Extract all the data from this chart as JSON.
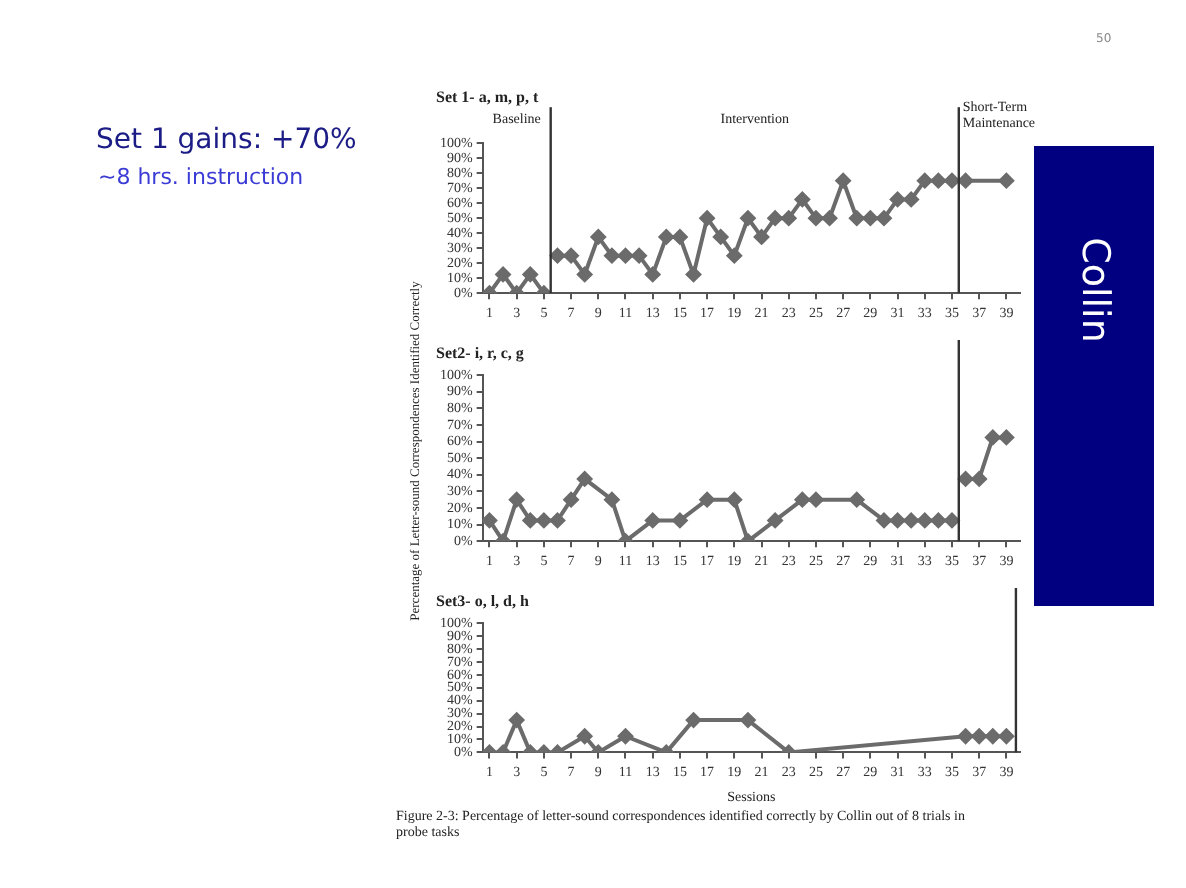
{
  "chart_data": [
    {
      "type": "other",
      "title": "Set 1 gains: +70%",
      "subtitle": "~8 hrs. instruction",
      "annotations": [
        "Collin",
        "50"
      ]
    },
    {
      "type": "line",
      "title": "Set 1- a, m, p, t",
      "marker": "diamond",
      "grid": false,
      "legend": false,
      "xlim": [
        0.5,
        40
      ],
      "ylim": [
        0,
        100
      ],
      "xticks": [
        1,
        3,
        5,
        7,
        9,
        11,
        13,
        15,
        17,
        19,
        21,
        23,
        25,
        27,
        29,
        31,
        33,
        35,
        37,
        39
      ],
      "yticks": [
        {
          "value": 0,
          "label": "0%"
        },
        {
          "value": 10,
          "label": "10%"
        },
        {
          "value": 20,
          "label": "20%"
        },
        {
          "value": 30,
          "label": "30%"
        },
        {
          "value": 40,
          "label": "40%"
        },
        {
          "value": 50,
          "label": "50%"
        },
        {
          "value": 60,
          "label": "60%"
        },
        {
          "value": 70,
          "label": "70%"
        },
        {
          "value": 80,
          "label": "80%"
        },
        {
          "value": 90,
          "label": "90%"
        },
        {
          "value": 100,
          "label": "100%"
        }
      ],
      "series": [
        {
          "color": "#6b6b6b",
          "x": [
            1,
            2,
            3,
            4,
            5
          ],
          "values": [
            0,
            12.5,
            0,
            12.5,
            0
          ]
        },
        {
          "color": "#6b6b6b",
          "x": [
            6,
            7,
            8,
            9,
            10,
            11,
            12,
            13,
            14,
            15,
            16,
            17,
            18,
            19,
            20,
            21,
            22,
            23,
            24,
            25,
            26,
            27,
            28,
            29,
            30,
            31,
            32,
            33,
            34,
            35,
            36,
            39
          ],
          "values": [
            25,
            25,
            12.5,
            37.5,
            25,
            25,
            25,
            12.5,
            37.5,
            37.5,
            12.5,
            50,
            37.5,
            25,
            50,
            37.5,
            50,
            50,
            62.5,
            50,
            50,
            75,
            50,
            50,
            50,
            62.5,
            62.5,
            75,
            75,
            75,
            75,
            75
          ]
        }
      ],
      "ref_lines": [
        {
          "axis": "x",
          "value": 5.5
        },
        {
          "axis": "x",
          "value": 35.5
        }
      ],
      "annotations": [
        "Baseline",
        "Intervention",
        "Short-Term Maintenance"
      ]
    },
    {
      "type": "line",
      "title": "Set2- i, r, c, g",
      "ylabel": "Percentage of Letter-sound Correspondences Identified Correctly",
      "marker": "diamond",
      "grid": false,
      "legend": false,
      "xlim": [
        0.5,
        40
      ],
      "ylim": [
        0,
        100
      ],
      "xticks": [
        1,
        3,
        5,
        7,
        9,
        11,
        13,
        15,
        17,
        19,
        21,
        23,
        25,
        27,
        29,
        31,
        33,
        35,
        37,
        39
      ],
      "yticks": [
        {
          "value": 0,
          "label": "0%"
        },
        {
          "value": 10,
          "label": "10%"
        },
        {
          "value": 20,
          "label": "20%"
        },
        {
          "value": 30,
          "label": "30%"
        },
        {
          "value": 40,
          "label": "40%"
        },
        {
          "value": 50,
          "label": "50%"
        },
        {
          "value": 60,
          "label": "60%"
        },
        {
          "value": 70,
          "label": "70%"
        },
        {
          "value": 80,
          "label": "80%"
        },
        {
          "value": 90,
          "label": "90%"
        },
        {
          "value": 100,
          "label": "100%"
        }
      ],
      "series": [
        {
          "color": "#6b6b6b",
          "x": [
            1,
            2,
            3,
            4,
            5,
            6,
            7,
            8,
            10,
            11,
            13,
            15,
            17,
            19,
            20,
            22,
            24,
            25,
            28,
            30,
            31,
            32,
            33,
            34,
            35
          ],
          "values": [
            12.5,
            0,
            25,
            12.5,
            12.5,
            12.5,
            25,
            37.5,
            25,
            0,
            12.5,
            12.5,
            25,
            25,
            0,
            12.5,
            25,
            25,
            25,
            12.5,
            12.5,
            12.5,
            12.5,
            12.5,
            12.5
          ]
        },
        {
          "color": "#6b6b6b",
          "x": [
            36,
            37,
            38,
            39
          ],
          "values": [
            37.5,
            37.5,
            62.5,
            62.5
          ]
        }
      ],
      "ref_lines": [
        {
          "axis": "x",
          "value": 35.5
        }
      ]
    },
    {
      "type": "line",
      "title": "Set3- o, l, d, h",
      "xlabel": "Sessions",
      "marker": "diamond",
      "grid": false,
      "legend": false,
      "xlim": [
        0.5,
        40
      ],
      "ylim": [
        0,
        100
      ],
      "xticks": [
        1,
        3,
        5,
        7,
        9,
        11,
        13,
        15,
        17,
        19,
        21,
        23,
        25,
        27,
        29,
        31,
        33,
        35,
        37,
        39
      ],
      "yticks": [
        {
          "value": 0,
          "label": "0%"
        },
        {
          "value": 10,
          "label": "10%"
        },
        {
          "value": 20,
          "label": "20%"
        },
        {
          "value": 30,
          "label": "30%"
        },
        {
          "value": 40,
          "label": "40%"
        },
        {
          "value": 50,
          "label": "50%"
        },
        {
          "value": 60,
          "label": "60%"
        },
        {
          "value": 70,
          "label": "70%"
        },
        {
          "value": 80,
          "label": "80%"
        },
        {
          "value": 90,
          "label": "90%"
        },
        {
          "value": 100,
          "label": "100%"
        }
      ],
      "series": [
        {
          "color": "#6b6b6b",
          "x": [
            1,
            2,
            3,
            4,
            5,
            6,
            8,
            9,
            11,
            14,
            16,
            20,
            23,
            36,
            37,
            38,
            39
          ],
          "values": [
            0,
            0,
            25,
            0,
            0,
            0,
            12.5,
            0,
            12.5,
            0,
            25,
            25,
            0,
            12.5,
            12.5,
            12.5,
            12.5
          ]
        }
      ],
      "ref_lines": [
        {
          "axis": "x",
          "value": 39.7
        }
      ],
      "annotations": [
        "Figure 2-3: Percentage of letter-sound correspondences identified correctly by Collin out of 8 trials in probe tasks"
      ]
    }
  ]
}
